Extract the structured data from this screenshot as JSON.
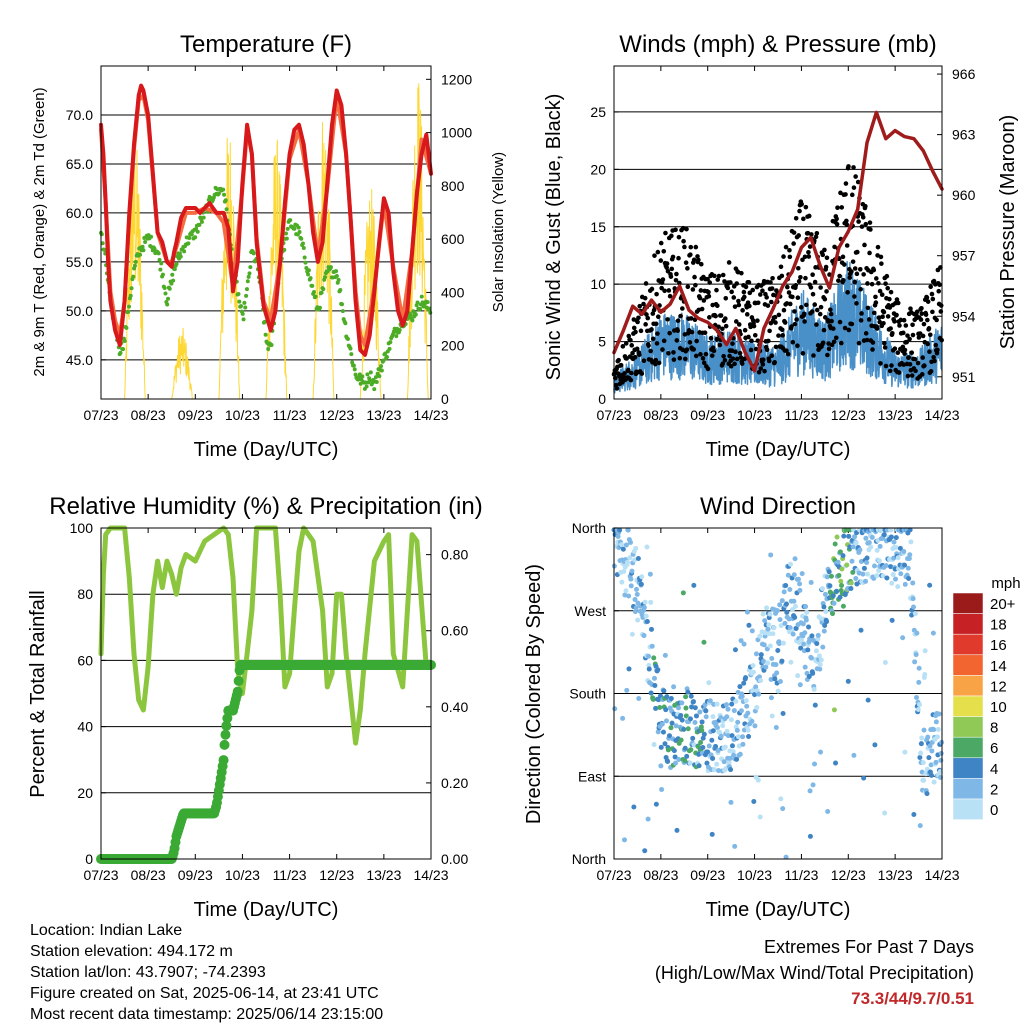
{
  "chart_data": [
    {
      "type": "line",
      "title": "Temperature (F)",
      "xlabel": "Time (Day/UTC)",
      "ylabel": "2m & 9m T (Red, Orange) & 2m Td (Green)",
      "ylabel_right": "Solar Insolation (Yellow)",
      "x_ticks": [
        "07/23",
        "08/23",
        "09/23",
        "10/23",
        "11/23",
        "12/23",
        "13/23",
        "14/23"
      ],
      "y_ticks": [
        "45.0",
        "50.0",
        "55.0",
        "60.0",
        "65.0",
        "70.0"
      ],
      "y2_ticks": [
        "0",
        "200",
        "400",
        "600",
        "800",
        "1000",
        "1200"
      ],
      "ylim": [
        41,
        75
      ],
      "y2lim": [
        0,
        1250
      ],
      "xlim": [
        0,
        7
      ],
      "grid": true,
      "colors": {
        "t2m": "#d7191c",
        "t9m": "#f46d43",
        "td": "#4dac26",
        "solar": "#fdd835"
      },
      "series": [
        {
          "name": "2m T",
          "x": [
            0,
            0.05,
            0.1,
            0.15,
            0.2,
            0.3,
            0.4,
            0.5,
            0.6,
            0.7,
            0.8,
            0.85,
            0.9,
            1.0,
            1.1,
            1.2,
            1.3,
            1.4,
            1.5,
            1.55,
            1.6,
            1.7,
            1.8,
            1.9,
            2.0,
            2.1,
            2.2,
            2.3,
            2.45,
            2.6,
            2.7,
            2.8,
            2.9,
            3.0,
            3.1,
            3.2,
            3.3,
            3.45,
            3.6,
            3.7,
            3.8,
            3.9,
            4.0,
            4.1,
            4.2,
            4.3,
            4.4,
            4.5,
            4.6,
            4.7,
            4.8,
            4.9,
            5.0,
            5.1,
            5.2,
            5.3,
            5.4,
            5.5,
            5.6,
            5.7,
            5.8,
            5.9,
            6.0,
            6.1,
            6.2,
            6.3,
            6.4,
            6.5,
            6.6,
            6.7,
            6.8,
            6.9,
            7.0
          ],
          "y": [
            69,
            66,
            61,
            55,
            51,
            48,
            46.5,
            51,
            60,
            67,
            72,
            73,
            72.5,
            70,
            64,
            58,
            57,
            55,
            54.5,
            56,
            57,
            59.5,
            60.5,
            60.5,
            60.5,
            60,
            60.5,
            61,
            60,
            60,
            58.5,
            52,
            55,
            63,
            69,
            66,
            57,
            50.5,
            48,
            50,
            55,
            61,
            66,
            68.5,
            69,
            67,
            63,
            58,
            55,
            57,
            63,
            69,
            72.5,
            71,
            66,
            59,
            51,
            46,
            45.5,
            47.5,
            52,
            57,
            61.5,
            60,
            54,
            50,
            48.5,
            50,
            56,
            62,
            66,
            68,
            64
          ]
        },
        {
          "name": "9m T",
          "x": [
            0,
            0.1,
            0.2,
            0.3,
            0.4,
            0.5,
            0.6,
            0.7,
            0.8,
            0.9,
            1.0,
            1.2,
            1.4,
            1.5,
            1.6,
            1.8,
            2.0,
            2.2,
            2.45,
            2.6,
            2.8,
            3.0,
            3.1,
            3.2,
            3.3,
            3.45,
            3.6,
            3.8,
            4.0,
            4.2,
            4.4,
            4.6,
            4.8,
            5.0,
            5.2,
            5.4,
            5.5,
            5.6,
            5.8,
            6.0,
            6.2,
            6.4,
            6.6,
            6.8,
            7.0
          ],
          "y": [
            68.5,
            61,
            52,
            49,
            47.5,
            51,
            59.5,
            66.5,
            71.5,
            72,
            69.5,
            58,
            55,
            55,
            56.5,
            60,
            60,
            60.5,
            60,
            59,
            52.5,
            62.5,
            68.5,
            66,
            57.5,
            51,
            49,
            55,
            65.5,
            68.5,
            63,
            55.5,
            62.5,
            72,
            66,
            52,
            47.5,
            46.5,
            52.5,
            61,
            54.5,
            49,
            56,
            67.5,
            64
          ]
        },
        {
          "name": "2m Td",
          "x": [
            0,
            0.1,
            0.2,
            0.3,
            0.4,
            0.5,
            0.6,
            0.7,
            0.8,
            1.0,
            1.2,
            1.3,
            1.4,
            1.5,
            1.6,
            1.8,
            2.0,
            2.2,
            2.4,
            2.6,
            2.8,
            3.0,
            3.1,
            3.2,
            3.3,
            3.4,
            3.5,
            3.6,
            3.8,
            4.0,
            4.2,
            4.4,
            4.6,
            4.8,
            5.0,
            5.2,
            5.4,
            5.6,
            5.7,
            5.8,
            6.0,
            6.2,
            6.4,
            6.6,
            6.8,
            7.0
          ],
          "y": [
            58,
            55,
            51,
            48.5,
            46,
            47,
            51,
            54,
            56,
            57.5,
            56,
            54,
            51,
            53,
            55,
            57,
            58,
            60,
            62,
            62.5,
            55,
            49,
            52,
            56,
            55,
            52,
            47,
            46,
            55,
            59,
            58,
            54,
            50,
            54,
            54,
            48,
            43.5,
            42.5,
            43.5,
            42.5,
            45,
            47.5,
            49,
            49.5,
            51,
            50
          ]
        },
        {
          "name": "Solar Insolation",
          "axis": "y2",
          "days": [
            0,
            1,
            2,
            3,
            4,
            5,
            6,
            7
          ],
          "peaks": [
            180,
            1000,
            270,
            1050,
            1000,
            1120,
            800,
            1250
          ]
        }
      ]
    },
    {
      "type": "scatter",
      "title": "Winds (mph) & Pressure (mb)",
      "xlabel": "Time (Day/UTC)",
      "ylabel": "Sonic Wind & Gust (Blue, Black)",
      "ylabel_right": "Station Pressure (Maroon)",
      "x_ticks": [
        "07/23",
        "08/23",
        "09/23",
        "10/23",
        "11/23",
        "12/23",
        "13/23",
        "14/23"
      ],
      "y_ticks": [
        "0",
        "5",
        "10",
        "15",
        "20",
        "25"
      ],
      "y2_ticks": [
        "951",
        "954",
        "957",
        "960",
        "963",
        "966"
      ],
      "ylim": [
        0,
        29
      ],
      "y2lim": [
        949.9,
        966.4
      ],
      "xlim": [
        0,
        7
      ],
      "grid": true,
      "colors": {
        "wind": "#4a90c8",
        "gust": "#000000",
        "pressure": "#a01c1c"
      },
      "series": [
        {
          "name": "Sonic Wind",
          "x": [
            0,
            0.5,
            1,
            1.5,
            2,
            2.5,
            3,
            3.5,
            4,
            4.5,
            5,
            5.5,
            6,
            6.5,
            7
          ],
          "y": [
            1.5,
            3,
            5.5,
            5.5,
            4,
            4.5,
            3.5,
            3.5,
            7,
            5,
            9,
            6,
            3,
            3,
            5
          ]
        },
        {
          "name": "Gust",
          "x": [
            0,
            0.5,
            1,
            1.5,
            2,
            2.5,
            3,
            3.5,
            4,
            4.5,
            5,
            5.5,
            6,
            6.5,
            7
          ],
          "y": [
            3,
            7,
            13,
            14,
            10,
            11,
            9,
            10,
            16,
            12,
            20,
            14,
            8,
            7,
            11
          ]
        },
        {
          "name": "Station Pressure",
          "x": [
            0,
            0.2,
            0.4,
            0.6,
            0.8,
            1.0,
            1.2,
            1.4,
            1.6,
            1.8,
            2.0,
            2.2,
            2.4,
            2.6,
            2.8,
            3.0,
            3.2,
            3.4,
            3.6,
            3.8,
            4.0,
            4.2,
            4.4,
            4.6,
            4.8,
            5.0,
            5.2,
            5.4,
            5.6,
            5.8,
            6.0,
            6.2,
            6.4,
            6.6,
            6.8,
            7.0
          ],
          "y": [
            952.2,
            953.3,
            954.5,
            954.1,
            954.8,
            954.2,
            954.6,
            955.5,
            954.3,
            953.9,
            953.7,
            953.3,
            952.6,
            953.4,
            952.2,
            951.3,
            953.4,
            954.4,
            955.5,
            956.2,
            957.4,
            957.9,
            956.5,
            955.4,
            957.4,
            958.2,
            959.3,
            962.6,
            964.1,
            962.8,
            963.2,
            962.9,
            962.8,
            962.2,
            961.2,
            960.3
          ]
        }
      ]
    },
    {
      "type": "line",
      "title": "Relative Humidity (%) & Precipitation (in)",
      "xlabel": "Time (Day/UTC)",
      "ylabel": "Percent & Total Rainfall",
      "x_ticks": [
        "07/23",
        "08/23",
        "09/23",
        "10/23",
        "11/23",
        "12/23",
        "13/23",
        "14/23"
      ],
      "y_ticks": [
        "0",
        "20",
        "40",
        "60",
        "80",
        "100"
      ],
      "y2_ticks": [
        "0.00",
        "0.20",
        "0.40",
        "0.60",
        "0.80"
      ],
      "ylim": [
        0,
        100
      ],
      "y2lim": [
        0,
        0.87
      ],
      "xlim": [
        0,
        7
      ],
      "grid": true,
      "colors": {
        "rh": "#8cc63f",
        "precip": "#3aaa35"
      },
      "series": [
        {
          "name": "Relative Humidity",
          "x": [
            0,
            0.05,
            0.1,
            0.2,
            0.3,
            0.5,
            0.6,
            0.7,
            0.8,
            0.9,
            1.0,
            1.1,
            1.2,
            1.3,
            1.4,
            1.5,
            1.6,
            1.7,
            1.8,
            2.0,
            2.2,
            2.4,
            2.6,
            2.7,
            2.8,
            2.9,
            3.0,
            3.1,
            3.2,
            3.3,
            3.5,
            3.7,
            3.8,
            3.9,
            4.0,
            4.1,
            4.2,
            4.3,
            4.5,
            4.7,
            4.8,
            4.9,
            5.0,
            5.1,
            5.2,
            5.4,
            5.5,
            5.6,
            5.8,
            6.0,
            6.1,
            6.2,
            6.4,
            6.6,
            6.7,
            6.9,
            7.0
          ],
          "y": [
            62,
            86,
            98,
            100,
            100,
            100,
            85,
            62,
            48,
            45,
            58,
            80,
            90,
            82,
            90,
            86,
            80,
            88,
            92,
            90,
            96,
            98,
            100,
            98,
            85,
            57,
            50,
            62,
            75,
            100,
            100,
            100,
            80,
            52,
            56,
            75,
            93,
            100,
            96,
            75,
            52,
            56,
            80,
            80,
            62,
            35,
            45,
            62,
            90,
            96,
            98,
            62,
            52,
            98,
            96,
            58,
            58
          ]
        },
        {
          "name": "Total Precipitation",
          "axis": "y2",
          "x": [
            0,
            1.5,
            1.55,
            1.6,
            1.7,
            1.75,
            1.8,
            2.0,
            2.4,
            2.45,
            2.5,
            2.55,
            2.6,
            2.62,
            2.65,
            2.7,
            2.75,
            2.8,
            2.9,
            2.95,
            3.0,
            7.0
          ],
          "y": [
            0,
            0,
            0.02,
            0.06,
            0.1,
            0.12,
            0.12,
            0.12,
            0.12,
            0.14,
            0.18,
            0.22,
            0.26,
            0.3,
            0.34,
            0.39,
            0.39,
            0.39,
            0.44,
            0.51,
            0.51,
            0.51
          ]
        }
      ]
    },
    {
      "type": "scatter",
      "title": "Wind Direction",
      "xlabel": "Time (Day/UTC)",
      "ylabel": "Direction (Colored By Speed)",
      "x_ticks": [
        "07/23",
        "08/23",
        "09/23",
        "10/23",
        "11/23",
        "12/23",
        "13/23",
        "14/23"
      ],
      "y_ticks": [
        "North",
        "East",
        "South",
        "West",
        "North"
      ],
      "ylim": [
        0,
        360
      ],
      "xlim": [
        0,
        7
      ],
      "grid": true,
      "legend_title": "mph",
      "legend_placement": "right",
      "colorbar": [
        {
          "label": "20+",
          "color": "#9b1b1b"
        },
        {
          "label": "18",
          "color": "#c62226"
        },
        {
          "label": "16",
          "color": "#e03a2c"
        },
        {
          "label": "14",
          "color": "#f26531"
        },
        {
          "label": "12",
          "color": "#f9a347"
        },
        {
          "label": "10",
          "color": "#e5df4c"
        },
        {
          "label": "8",
          "color": "#91c957"
        },
        {
          "label": "6",
          "color": "#4ca865"
        },
        {
          "label": "4",
          "color": "#3f84c4"
        },
        {
          "label": "2",
          "color": "#7fb8e6"
        },
        {
          "label": "0",
          "color": "#b9e1f6"
        }
      ],
      "series": [
        {
          "name": "Direction",
          "x": [
            0.1,
            0.3,
            0.5,
            1.0,
            1.3,
            1.6,
            2.0,
            2.4,
            2.8,
            3.0,
            3.2,
            3.5,
            3.7,
            4.0,
            4.3,
            4.5,
            4.8,
            5.0,
            5.3,
            5.6,
            6.0,
            6.3,
            6.6,
            6.9
          ],
          "y": [
            340,
            320,
            300,
            150,
            130,
            140,
            135,
            130,
            160,
            180,
            240,
            230,
            290,
            260,
            200,
            290,
            320,
            330,
            340,
            345,
            335,
            340,
            100,
            130
          ]
        }
      ]
    }
  ],
  "info": {
    "location": "Location: Indian Lake",
    "elevation": "Station elevation: 494.172 m",
    "latlon": "Station lat/lon: 43.7907; -74.2393",
    "created": "Figure created on Sat, 2025-06-14, at 23:41 UTC",
    "recent": "Most recent data timestamp: 2025/06/14 23:15:00"
  },
  "extremes": {
    "title": "Extremes For Past 7 Days",
    "subtitle": "(High/Low/Max Wind/Total Precipitation)",
    "values": "73.3/44/9.7/0.51"
  }
}
